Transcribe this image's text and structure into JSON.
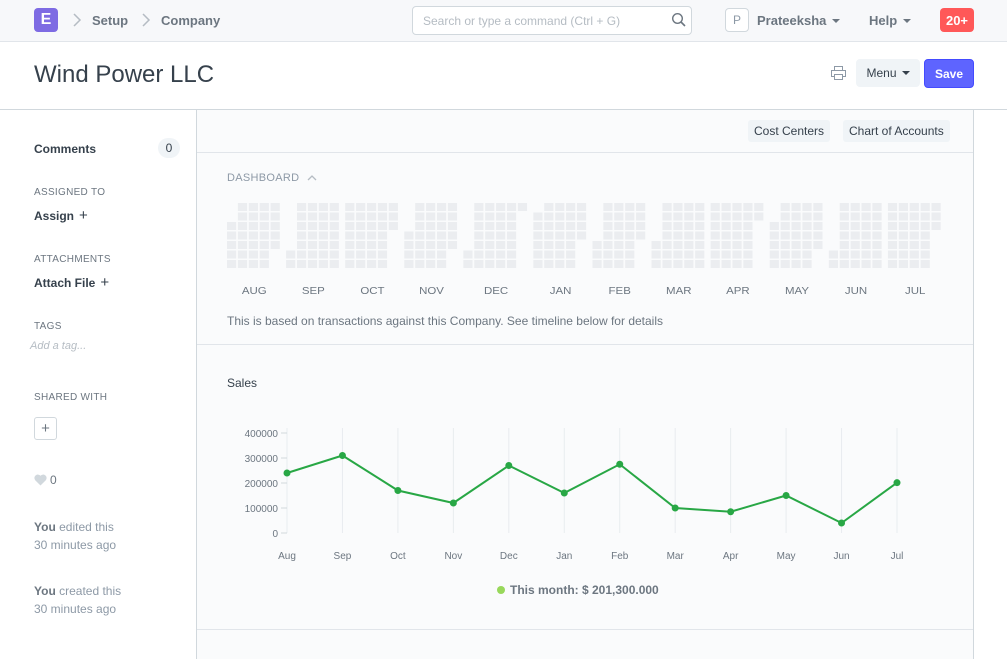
{
  "navbar": {
    "logo_letter": "E",
    "breadcrumbs": [
      "Setup",
      "Company"
    ],
    "search_placeholder": "Search or type a command (Ctrl + G)",
    "user_initial": "P",
    "user_name": "Prateeksha",
    "help_label": "Help",
    "notifications": "20+"
  },
  "page": {
    "title": "Wind Power LLC",
    "menu_label": "Menu",
    "save_label": "Save"
  },
  "sidebar": {
    "comments_label": "Comments",
    "comments_count": "0",
    "assigned_heading": "ASSIGNED TO",
    "assign_label": "Assign",
    "attachments_heading": "ATTACHMENTS",
    "attach_label": "Attach File",
    "tags_heading": "TAGS",
    "tag_placeholder": "Add a tag...",
    "shared_heading": "SHARED WITH",
    "likes": "0",
    "activity": [
      {
        "user": "You",
        "action": " edited this",
        "time": "30 minutes ago"
      },
      {
        "user": "You",
        "action": " created this",
        "time": "30 minutes ago"
      }
    ]
  },
  "toolbar": {
    "buttons": [
      "Cost Centers",
      "Chart of Accounts"
    ]
  },
  "dashboard": {
    "heading": "DASHBOARD",
    "months": [
      "AUG",
      "SEP",
      "OCT",
      "NOV",
      "DEC",
      "JAN",
      "FEB",
      "MAR",
      "APR",
      "MAY",
      "JUN",
      "JUL"
    ],
    "note": "This is based on transactions against this Company. See timeline below for details"
  },
  "sales": {
    "title": "Sales",
    "legend_text": "This month: $ 201,300.000"
  },
  "colors": {
    "brand": "#7e6be3",
    "primary": "#5e64ff",
    "alert": "#ff5858",
    "line": "#28a745",
    "legend_dot": "#98d85b"
  },
  "chart_data": {
    "type": "line",
    "categories": [
      "Aug",
      "Sep",
      "Oct",
      "Nov",
      "Dec",
      "Jan",
      "Feb",
      "Mar",
      "Apr",
      "May",
      "Jun",
      "Jul"
    ],
    "values": [
      240000,
      310000,
      170000,
      120000,
      270000,
      160000,
      275000,
      100000,
      85000,
      150000,
      40000,
      201300
    ],
    "yticks": [
      0,
      100000,
      200000,
      300000,
      400000
    ],
    "ylim": [
      0,
      400000
    ],
    "grid": "vertical"
  }
}
